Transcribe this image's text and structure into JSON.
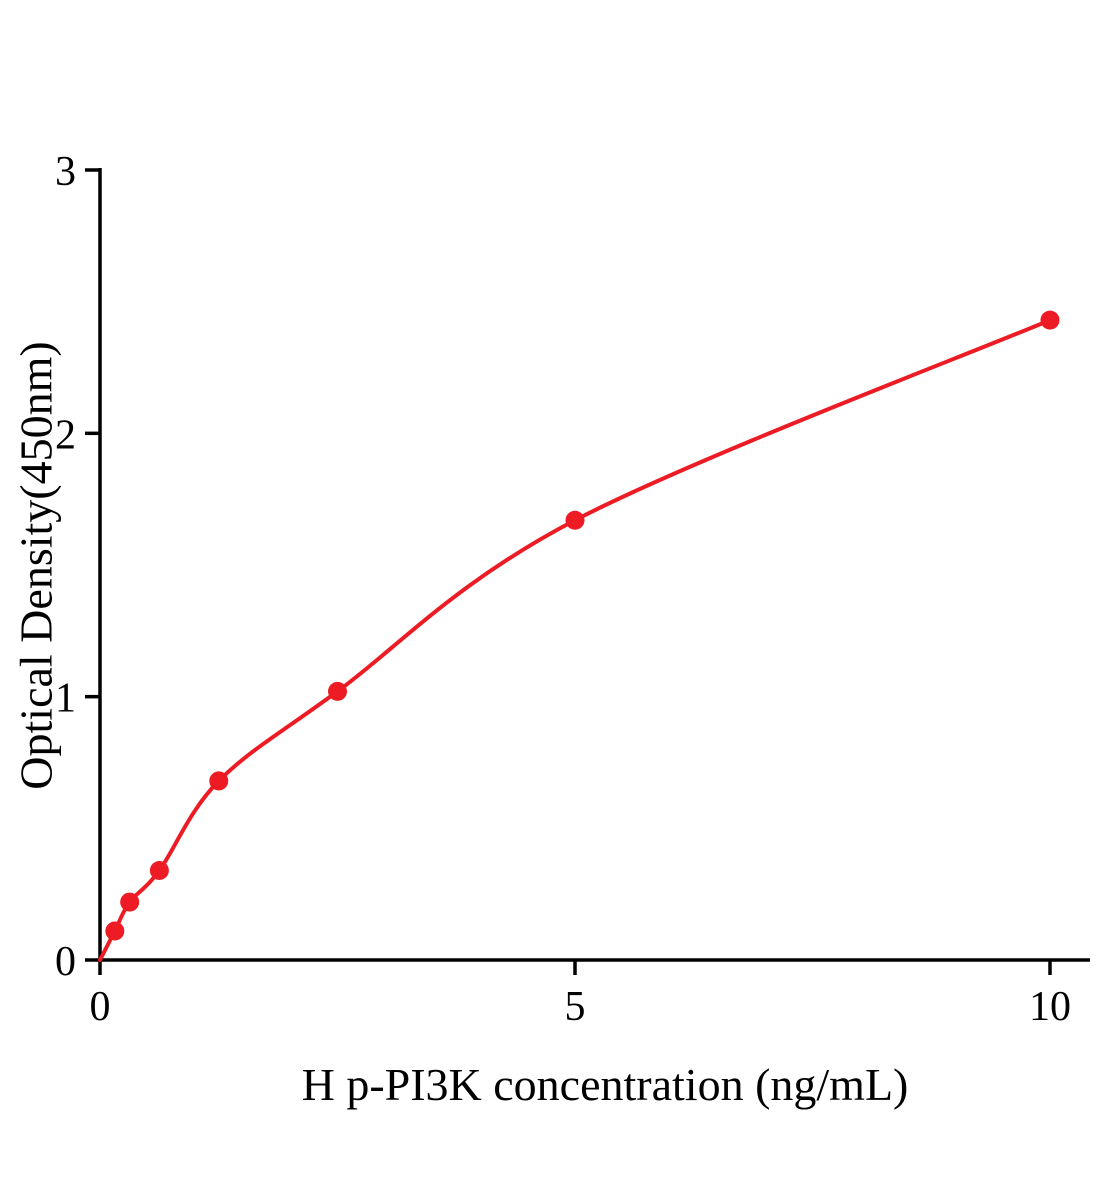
{
  "chart_data": {
    "type": "line",
    "title": "",
    "xlabel": "H p-PI3K concentration (ng/mL)",
    "ylabel": "Optical Density(450nm)",
    "x": [
      0.156,
      0.3125,
      0.625,
      1.25,
      2.5,
      5,
      10
    ],
    "y": [
      0.11,
      0.22,
      0.34,
      0.68,
      1.02,
      1.67,
      2.43
    ],
    "curve_start": [
      0,
      0
    ],
    "xlim": [
      0,
      10.4
    ],
    "ylim": [
      0,
      3
    ],
    "xticks": [
      0,
      5,
      10
    ],
    "yticks": [
      0,
      1,
      2,
      3
    ],
    "grid": false,
    "legend": null,
    "line_color": "#ed1c24",
    "marker_color": "#ed1c24",
    "axis_color": "#000000"
  }
}
